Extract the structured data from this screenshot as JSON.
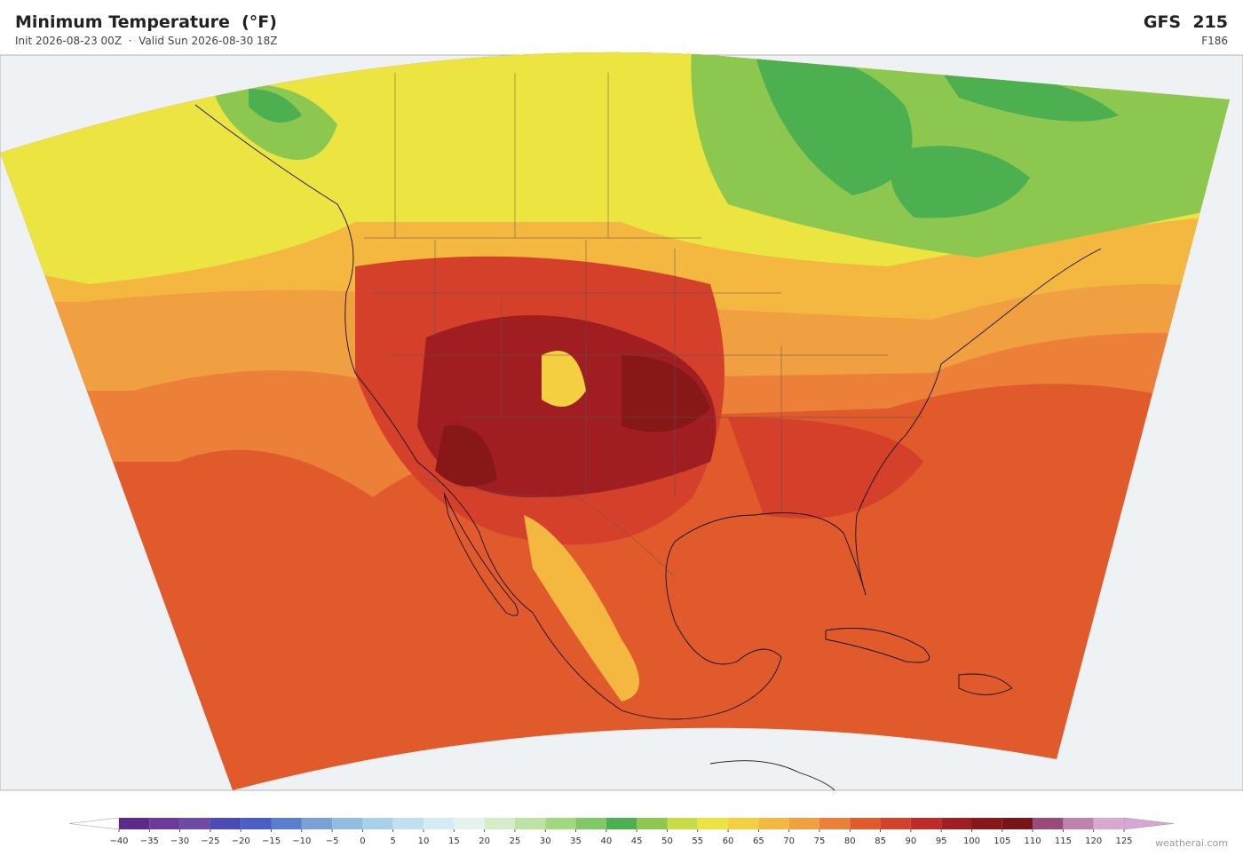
{
  "header": {
    "title": "Minimum Temperature  (°F)",
    "subtitle": "Init 2026-08-23 00Z  ·  Valid Sun 2026-08-30 18Z",
    "model": "GFS  215",
    "forecast_hour": "F186"
  },
  "colorbar": {
    "ticks": [
      {
        "value": -40,
        "label": "−40"
      },
      {
        "value": -35,
        "label": "−35"
      },
      {
        "value": -30,
        "label": "−30"
      },
      {
        "value": -25,
        "label": "−25"
      },
      {
        "value": -20,
        "label": "−20"
      },
      {
        "value": -15,
        "label": "−15"
      },
      {
        "value": -10,
        "label": "−10"
      },
      {
        "value": -5,
        "label": "−5"
      },
      0,
      5,
      10,
      15,
      20,
      25,
      30,
      35,
      40,
      45,
      50,
      55,
      60,
      65,
      70,
      75,
      80,
      85,
      90,
      95,
      100,
      105,
      110,
      115,
      120,
      125
    ],
    "colors": [
      "#5b2a8c",
      "#6a3a9e",
      "#6e4aa8",
      "#4a4ab8",
      "#4a5ec8",
      "#5a7ed0",
      "#7aa0d8",
      "#90bce0",
      "#a8d0e8",
      "#c0dff0",
      "#d4ecf2",
      "#e4f4ec",
      "#d4ecc8",
      "#bce4a0",
      "#a0d880",
      "#80c868",
      "#4cb050",
      "#8cc850",
      "#c8dc48",
      "#ece440",
      "#f4d040",
      "#f4b840",
      "#f0a040",
      "#ec8038",
      "#e05a2c",
      "#d4402a",
      "#c02a28",
      "#a01e22",
      "#881818",
      "#781418",
      "#9a4a7a",
      "#c080b0",
      "#d8a8d0"
    ],
    "extend_colors": [
      "#ffffff",
      "#d6a6d6"
    ]
  },
  "footer": {
    "credit": "weatherai.com"
  }
}
